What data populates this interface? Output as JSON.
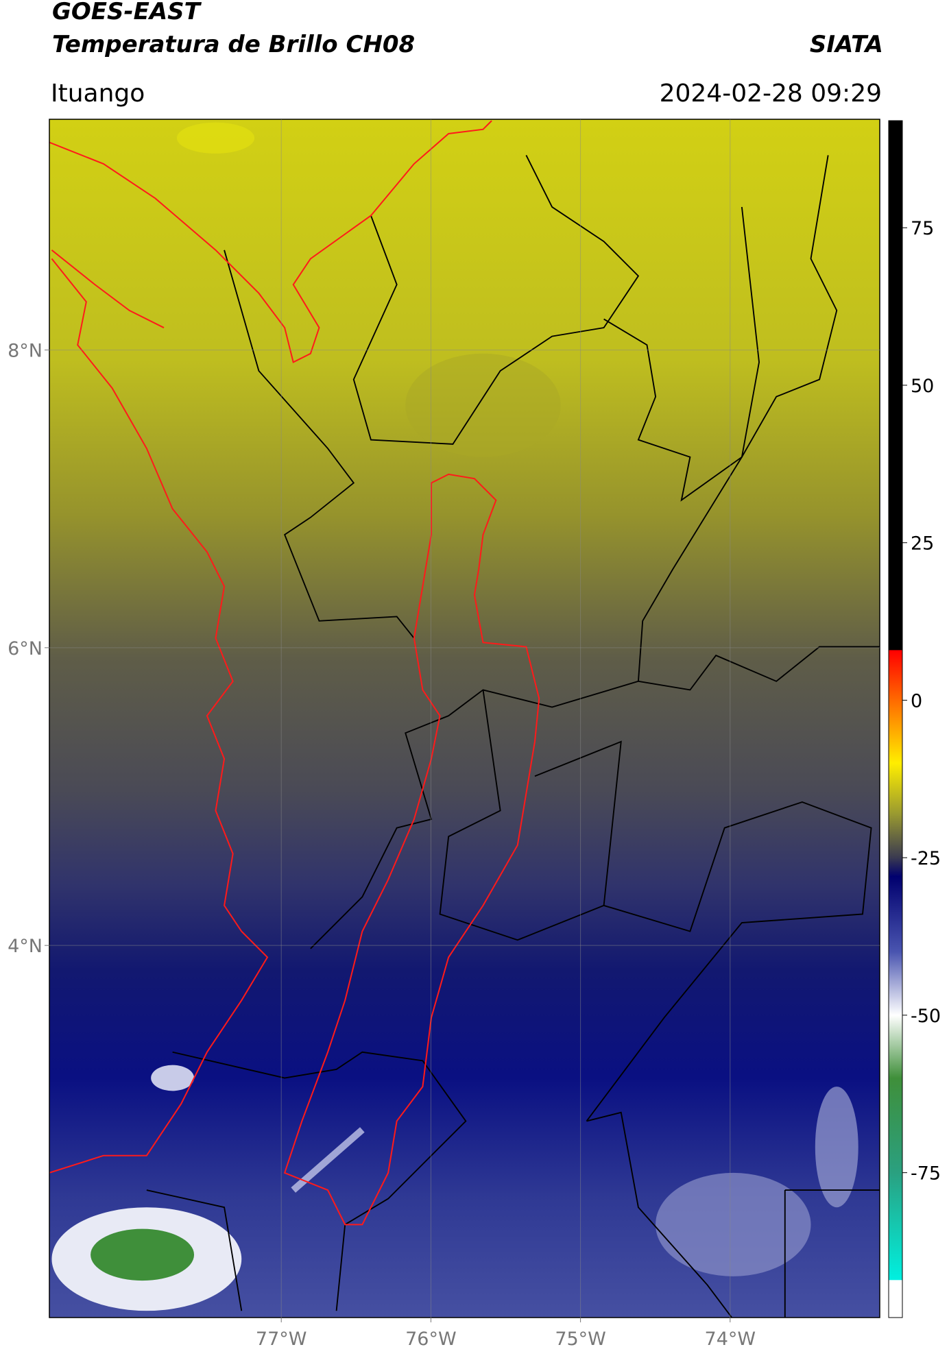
{
  "chart_data": {
    "type": "map",
    "title": "GOES-EAST",
    "subtitle": "Temperatura de Brillo CH08",
    "source": "SIATA",
    "region": "Ituango",
    "datetime": "2024-02-28 09:29",
    "xlim": [
      -78.55,
      -73.0
    ],
    "ylim": [
      1.5,
      9.55
    ],
    "xticks": [
      {
        "value": -77,
        "label": "77°W"
      },
      {
        "value": -76,
        "label": "76°W"
      },
      {
        "value": -75,
        "label": "75°W"
      },
      {
        "value": -74,
        "label": "74°W"
      }
    ],
    "yticks": [
      {
        "value": 4,
        "label": "4°N"
      },
      {
        "value": 6,
        "label": "6°N"
      },
      {
        "value": 8,
        "label": "8°N"
      }
    ],
    "grid": true,
    "colorbar": {
      "clim": [
        -98,
        92
      ],
      "ticks": [
        -75,
        -50,
        -25,
        0,
        25,
        50,
        75
      ],
      "colormap": [
        {
          "value": 92,
          "color": "#000000"
        },
        {
          "value": 8,
          "color": "#000000"
        },
        {
          "value": 7.9,
          "color": "#ff0000"
        },
        {
          "value": 0,
          "color": "#ff6a00"
        },
        {
          "value": -10,
          "color": "#ffee00"
        },
        {
          "value": -18,
          "color": "#9a9a30"
        },
        {
          "value": -25,
          "color": "#3a3a50"
        },
        {
          "value": -28,
          "color": "#00006e"
        },
        {
          "value": -40,
          "color": "#4a55b0"
        },
        {
          "value": -50,
          "color": "#ffffff"
        },
        {
          "value": -60,
          "color": "#3f8f3a"
        },
        {
          "value": -75,
          "color": "#2aa080"
        },
        {
          "value": -92,
          "color": "#00f0e0"
        },
        {
          "value": -92.1,
          "color": "#ffffff"
        },
        {
          "value": -98,
          "color": "#ffffff"
        }
      ]
    }
  }
}
